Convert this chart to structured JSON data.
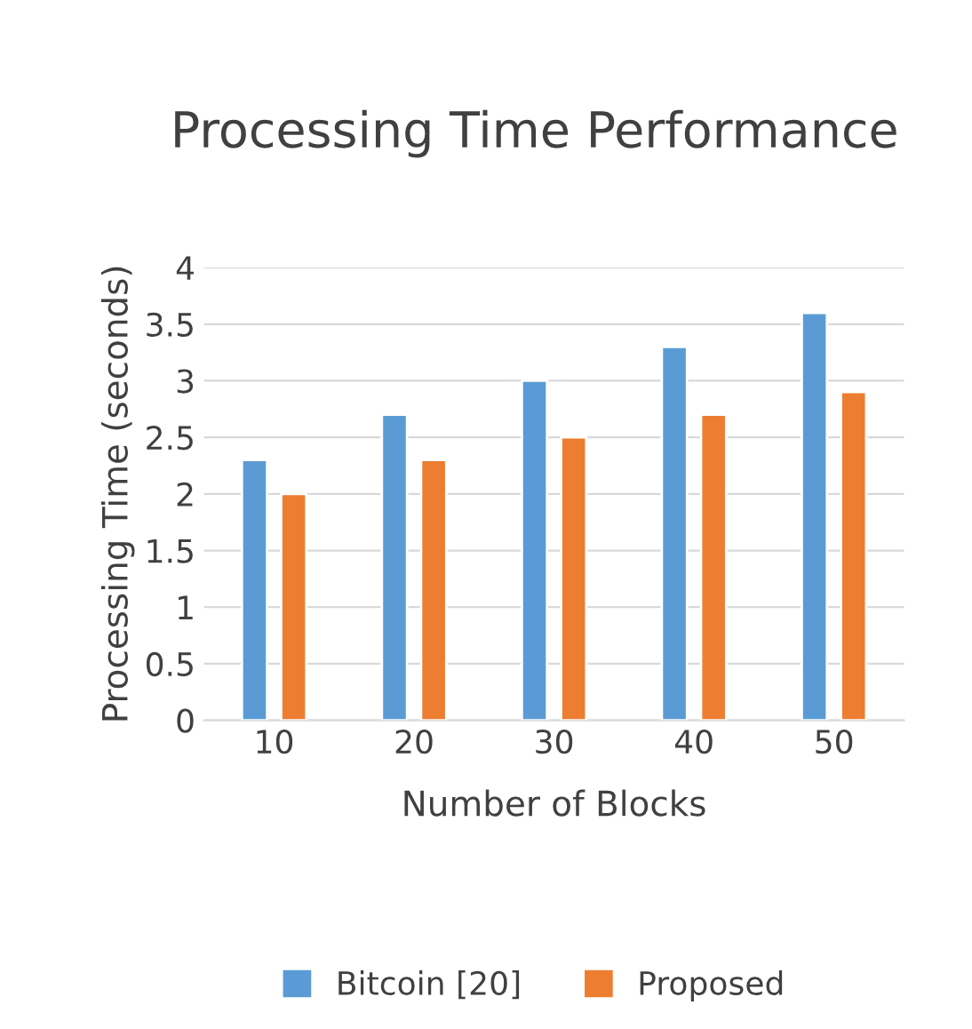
{
  "chart_data": {
    "type": "bar",
    "title": "Processing Time Performance",
    "xlabel": "Number of Blocks",
    "ylabel": "Processing Time (seconds)",
    "categories": [
      "10",
      "20",
      "30",
      "40",
      "50"
    ],
    "series": [
      {
        "name": "Bitcoin [20]",
        "color": "#5b9bd5",
        "values": [
          2.3,
          2.7,
          3.0,
          3.3,
          3.6
        ]
      },
      {
        "name": "Proposed",
        "color": "#ed7d31",
        "values": [
          2.0,
          2.3,
          2.5,
          2.7,
          2.9
        ]
      }
    ],
    "ylim": [
      0,
      4
    ],
    "yticks": [
      0,
      0.5,
      1,
      1.5,
      2,
      2.5,
      3,
      3.5,
      4
    ],
    "grid": "y",
    "legend": "bottom"
  }
}
